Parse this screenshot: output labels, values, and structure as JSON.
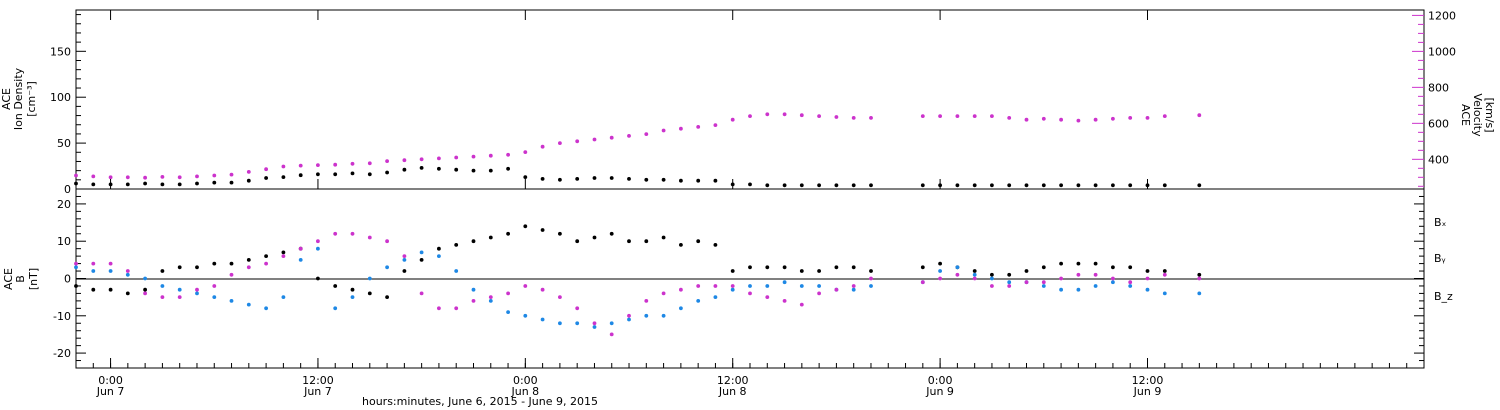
{
  "colors": {
    "density": "#000000",
    "velocity": "#cc33cc",
    "bx": "#000000",
    "by": "#1e88e5",
    "bz": "#cc33cc"
  },
  "chart_data": [
    {
      "type": "scatter",
      "panel": "top",
      "ylabel_left_lines": [
        "ACE",
        "Ion Density",
        "[cm⁻³]"
      ],
      "ylabel_right_lines": [
        "ACE",
        "Velocity",
        "[km/s]"
      ],
      "ylim": [
        0,
        195
      ],
      "y_ticks": [
        "0",
        "50",
        "100",
        "150"
      ],
      "y2lim": [
        235,
        1230
      ],
      "y2_ticks": [
        "400",
        "600",
        "800",
        "1000",
        "1200"
      ],
      "grid": false,
      "x": [
        "2015-06-06T22:00",
        "2015-06-06T23:00",
        "2015-06-07T00:00",
        "2015-06-07T01:00",
        "2015-06-07T02:00",
        "2015-06-07T03:00",
        "2015-06-07T04:00",
        "2015-06-07T05:00",
        "2015-06-07T06:00",
        "2015-06-07T07:00",
        "2015-06-07T08:00",
        "2015-06-07T09:00",
        "2015-06-07T10:00",
        "2015-06-07T11:00",
        "2015-06-07T12:00",
        "2015-06-07T13:00",
        "2015-06-07T14:00",
        "2015-06-07T15:00",
        "2015-06-07T16:00",
        "2015-06-07T17:00",
        "2015-06-07T18:00",
        "2015-06-07T19:00",
        "2015-06-07T20:00",
        "2015-06-07T21:00",
        "2015-06-07T22:00",
        "2015-06-07T23:00",
        "2015-06-08T00:00",
        "2015-06-08T01:00",
        "2015-06-08T02:00",
        "2015-06-08T03:00",
        "2015-06-08T04:00",
        "2015-06-08T05:00",
        "2015-06-08T06:00",
        "2015-06-08T07:00",
        "2015-06-08T08:00",
        "2015-06-08T09:00",
        "2015-06-08T10:00",
        "2015-06-08T11:00",
        "2015-06-08T12:00",
        "2015-06-08T13:00",
        "2015-06-08T14:00",
        "2015-06-08T15:00",
        "2015-06-08T16:00",
        "2015-06-08T17:00",
        "2015-06-08T18:00",
        "2015-06-08T19:00",
        "2015-06-08T20:00",
        "2015-06-08T21:00",
        "2015-06-08T22:00",
        "2015-06-08T23:00",
        "2015-06-09T00:00",
        "2015-06-09T01:00",
        "2015-06-09T02:00",
        "2015-06-09T03:00",
        "2015-06-09T04:00",
        "2015-06-09T05:00",
        "2015-06-09T06:00",
        "2015-06-09T07:00",
        "2015-06-09T08:00",
        "2015-06-09T09:00",
        "2015-06-09T10:00",
        "2015-06-09T11:00",
        "2015-06-09T12:00",
        "2015-06-09T13:00",
        "2015-06-09T14:00",
        "2015-06-09T15:00"
      ],
      "series": [
        {
          "name": "Ion Density",
          "axis": "left",
          "values": [
            6,
            5,
            5,
            5,
            6,
            5,
            5,
            6,
            7,
            7,
            9,
            12,
            13,
            15,
            16,
            16,
            17,
            16,
            18,
            21,
            23,
            22,
            21,
            20,
            20,
            22,
            13,
            11,
            10,
            11,
            12,
            12,
            11,
            10,
            10,
            9,
            9,
            9,
            5,
            5,
            4,
            4,
            4,
            4,
            4,
            4,
            4,
            null,
            null,
            4,
            4,
            4,
            4,
            4,
            4,
            4,
            4,
            4,
            4,
            4,
            4,
            4,
            4,
            4,
            null,
            4
          ]
        },
        {
          "name": "Velocity",
          "axis": "right",
          "values": [
            310,
            305,
            300,
            300,
            298,
            302,
            300,
            305,
            310,
            315,
            330,
            345,
            360,
            365,
            368,
            370,
            375,
            378,
            390,
            395,
            400,
            405,
            410,
            415,
            420,
            425,
            440,
            470,
            490,
            500,
            510,
            520,
            530,
            540,
            560,
            570,
            580,
            590,
            620,
            640,
            650,
            650,
            645,
            640,
            635,
            630,
            630,
            null,
            null,
            640,
            640,
            640,
            640,
            640,
            630,
            620,
            625,
            620,
            615,
            620,
            625,
            630,
            630,
            640,
            null,
            645
          ]
        }
      ]
    },
    {
      "type": "scatter",
      "panel": "bottom",
      "ylabel_lines": [
        "ACE",
        "B",
        "[nT]"
      ],
      "ylim": [
        -24,
        24
      ],
      "y_ticks": [
        "-20",
        "-10",
        "0",
        "10",
        "20"
      ],
      "grid": false,
      "x": [
        "2015-06-06T22:00",
        "2015-06-06T23:00",
        "2015-06-07T00:00",
        "2015-06-07T01:00",
        "2015-06-07T02:00",
        "2015-06-07T03:00",
        "2015-06-07T04:00",
        "2015-06-07T05:00",
        "2015-06-07T06:00",
        "2015-06-07T07:00",
        "2015-06-07T08:00",
        "2015-06-07T09:00",
        "2015-06-07T10:00",
        "2015-06-07T11:00",
        "2015-06-07T12:00",
        "2015-06-07T13:00",
        "2015-06-07T14:00",
        "2015-06-07T15:00",
        "2015-06-07T16:00",
        "2015-06-07T17:00",
        "2015-06-07T18:00",
        "2015-06-07T19:00",
        "2015-06-07T20:00",
        "2015-06-07T21:00",
        "2015-06-07T22:00",
        "2015-06-07T23:00",
        "2015-06-08T00:00",
        "2015-06-08T01:00",
        "2015-06-08T02:00",
        "2015-06-08T03:00",
        "2015-06-08T04:00",
        "2015-06-08T05:00",
        "2015-06-08T06:00",
        "2015-06-08T07:00",
        "2015-06-08T08:00",
        "2015-06-08T09:00",
        "2015-06-08T10:00",
        "2015-06-08T11:00",
        "2015-06-08T12:00",
        "2015-06-08T13:00",
        "2015-06-08T14:00",
        "2015-06-08T15:00",
        "2015-06-08T16:00",
        "2015-06-08T17:00",
        "2015-06-08T18:00",
        "2015-06-08T19:00",
        "2015-06-08T20:00",
        "2015-06-08T21:00",
        "2015-06-08T22:00",
        "2015-06-08T23:00",
        "2015-06-09T00:00",
        "2015-06-09T01:00",
        "2015-06-09T02:00",
        "2015-06-09T03:00",
        "2015-06-09T04:00",
        "2015-06-09T05:00",
        "2015-06-09T06:00",
        "2015-06-09T07:00",
        "2015-06-09T08:00",
        "2015-06-09T09:00",
        "2015-06-09T10:00",
        "2015-06-09T11:00",
        "2015-06-09T12:00",
        "2015-06-09T13:00",
        "2015-06-09T14:00",
        "2015-06-09T15:00"
      ],
      "series": [
        {
          "name": "Bₓ",
          "values": [
            -2,
            -3,
            -3,
            -4,
            -3,
            2,
            3,
            3,
            4,
            4,
            5,
            6,
            7,
            8,
            0,
            -2,
            -3,
            -4,
            -5,
            2,
            5,
            8,
            9,
            10,
            11,
            12,
            14,
            13,
            12,
            10,
            11,
            12,
            10,
            10,
            11,
            9,
            10,
            9,
            2,
            3,
            3,
            3,
            2,
            2,
            3,
            3,
            2,
            null,
            null,
            3,
            4,
            3,
            2,
            1,
            1,
            2,
            3,
            4,
            4,
            4,
            3,
            3,
            2,
            2,
            null,
            1
          ]
        },
        {
          "name": "Bᵧ",
          "values": [
            3,
            2,
            2,
            1,
            0,
            -2,
            -3,
            -4,
            -5,
            -6,
            -7,
            -8,
            -5,
            5,
            8,
            -8,
            -5,
            0,
            3,
            5,
            7,
            6,
            2,
            -3,
            -6,
            -9,
            -10,
            -11,
            -12,
            -12,
            -13,
            -12,
            -11,
            -10,
            -10,
            -8,
            -6,
            -5,
            -3,
            -2,
            -2,
            -1,
            -2,
            -2,
            -3,
            -3,
            -2,
            null,
            null,
            -1,
            2,
            3,
            1,
            0,
            -1,
            -1,
            -2,
            -3,
            -3,
            -2,
            -1,
            -2,
            -3,
            -4,
            null,
            -4
          ]
        },
        {
          "name": "B_z",
          "values": [
            4,
            4,
            4,
            2,
            -4,
            -5,
            -5,
            -3,
            -2,
            1,
            3,
            4,
            6,
            8,
            10,
            12,
            12,
            11,
            10,
            6,
            -4,
            -8,
            -8,
            -6,
            -5,
            -4,
            -2,
            -3,
            -5,
            -8,
            -12,
            -15,
            -10,
            -6,
            -4,
            -3,
            -2,
            -2,
            -2,
            -4,
            -5,
            -6,
            -7,
            -4,
            -3,
            -2,
            0,
            null,
            null,
            -1,
            0,
            1,
            0,
            -2,
            -2,
            -1,
            -1,
            0,
            1,
            1,
            0,
            -1,
            0,
            1,
            null,
            0
          ]
        }
      ]
    }
  ],
  "x_axis": {
    "ticks": [
      {
        "x": "2015-06-07T00:00",
        "time": "0:00",
        "day": "Jun 7"
      },
      {
        "x": "2015-06-07T12:00",
        "time": "12:00",
        "day": "Jun 7"
      },
      {
        "x": "2015-06-08T00:00",
        "time": "0:00",
        "day": "Jun 8"
      },
      {
        "x": "2015-06-08T12:00",
        "time": "12:00",
        "day": "Jun 8"
      },
      {
        "x": "2015-06-09T00:00",
        "time": "0:00",
        "day": "Jun 9"
      },
      {
        "x": "2015-06-09T12:00",
        "time": "12:00",
        "day": "Jun 9"
      }
    ],
    "xlim": [
      "2015-06-06T22:00",
      "2015-06-10T04:00"
    ],
    "label": "hours:minutes, June  6, 2015 - June  9, 2015"
  },
  "legend_position": "right"
}
